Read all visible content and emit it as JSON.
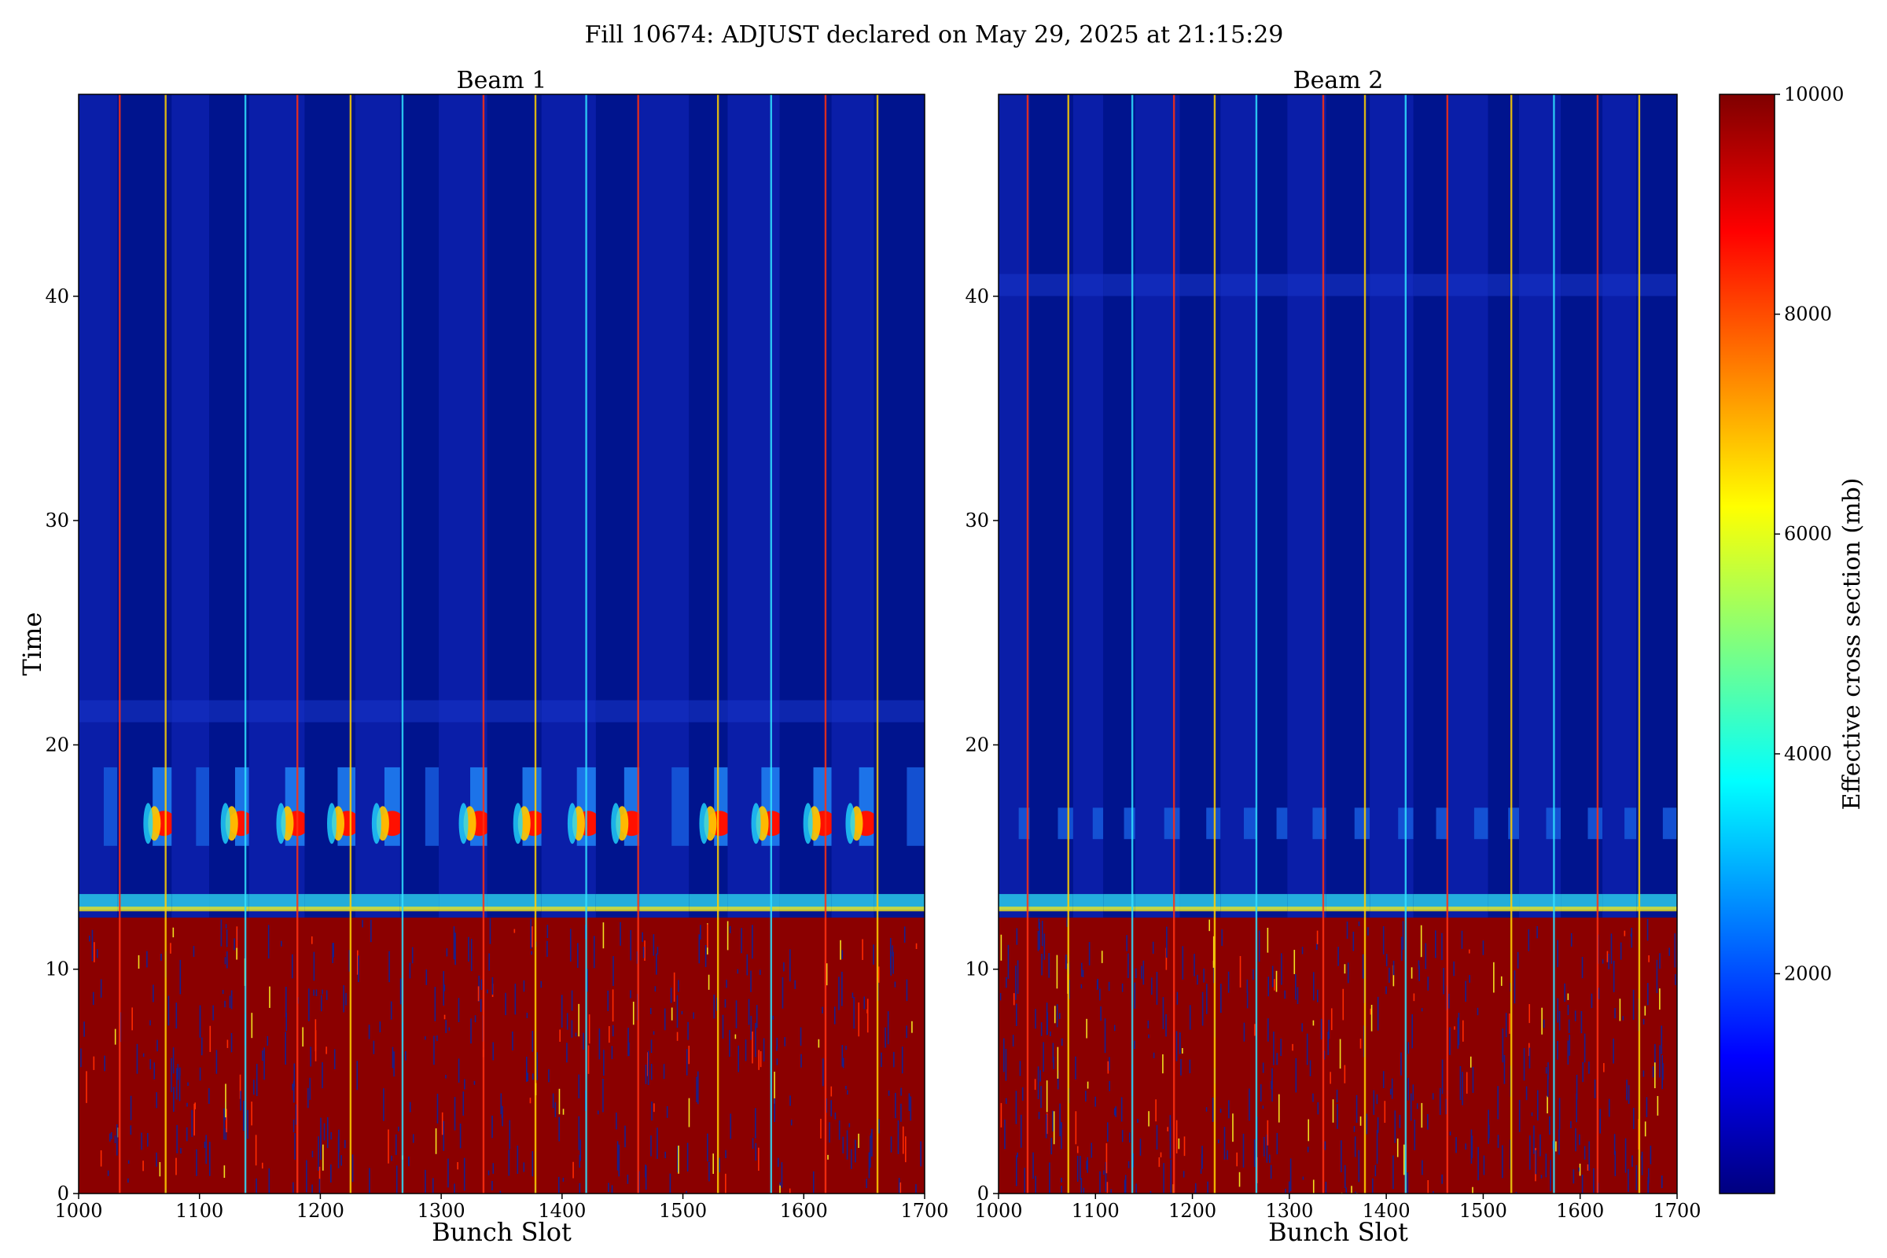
{
  "figure": {
    "title": "Fill 10674: ADJUST declared on May 29, 2025 at 21:15:29"
  },
  "chart_data": [
    {
      "type": "heatmap",
      "title": "Beam 1",
      "xlabel": "Bunch Slot",
      "ylabel": "Time",
      "xlim": [
        1000,
        1700
      ],
      "ylim": [
        0,
        49
      ],
      "xticks": [
        1000,
        1100,
        1200,
        1300,
        1400,
        1500,
        1600,
        1700
      ],
      "yticks": [
        0,
        10,
        20,
        30,
        40
      ],
      "colormap": "jet",
      "train_start_slots": [
        1000,
        1032,
        1077,
        1108,
        1141,
        1187,
        1229,
        1266,
        1298,
        1338,
        1383,
        1428,
        1464,
        1505,
        1537,
        1580,
        1623,
        1658
      ],
      "bright_column_slots": [
        1034,
        1072,
        1138,
        1181,
        1225,
        1268,
        1335,
        1378,
        1420,
        1463,
        1529,
        1573,
        1618,
        1661
      ],
      "saturated_until_time": 12.3,
      "onset_band_time": 13,
      "peak_band_time": 16.5,
      "peak_band_time_range": [
        15.5,
        19
      ],
      "secondary_band_time": 21.5,
      "high_cross_section_trains": [
        1,
        3,
        4,
        5,
        6,
        8,
        9,
        10,
        11,
        13,
        14,
        15,
        16
      ]
    },
    {
      "type": "heatmap",
      "title": "Beam 2",
      "xlabel": "Bunch Slot",
      "ylabel": "",
      "xlim": [
        1000,
        1700
      ],
      "ylim": [
        0,
        49
      ],
      "xticks": [
        1000,
        1100,
        1200,
        1300,
        1400,
        1500,
        1600,
        1700
      ],
      "yticks": [
        0,
        10,
        20,
        30,
        40
      ],
      "colormap": "jet",
      "train_start_slots": [
        1000,
        1032,
        1077,
        1108,
        1141,
        1187,
        1229,
        1266,
        1298,
        1338,
        1383,
        1428,
        1464,
        1505,
        1537,
        1580,
        1623,
        1658
      ],
      "bright_column_slots": [
        1030,
        1072,
        1138,
        1181,
        1223,
        1266,
        1335,
        1378,
        1420,
        1463,
        1529,
        1573,
        1618,
        1661
      ],
      "saturated_until_time": 12.3,
      "onset_band_time": 13,
      "peak_band_time": 16.5,
      "peak_band_time_range": [
        15.8,
        17.2
      ],
      "secondary_band_time": 40.5,
      "high_cross_section_trains": []
    }
  ],
  "colorbar": {
    "label": "Effective cross section (mb)",
    "min": 0,
    "max": 10000,
    "ticks": [
      2000,
      4000,
      6000,
      8000,
      10000
    ],
    "colormap": "jet",
    "colors": [
      "#00007f",
      "#0000ff",
      "#007fff",
      "#00ffff",
      "#7fff7f",
      "#ffff00",
      "#ff7f00",
      "#ff0000",
      "#7f0000"
    ]
  }
}
